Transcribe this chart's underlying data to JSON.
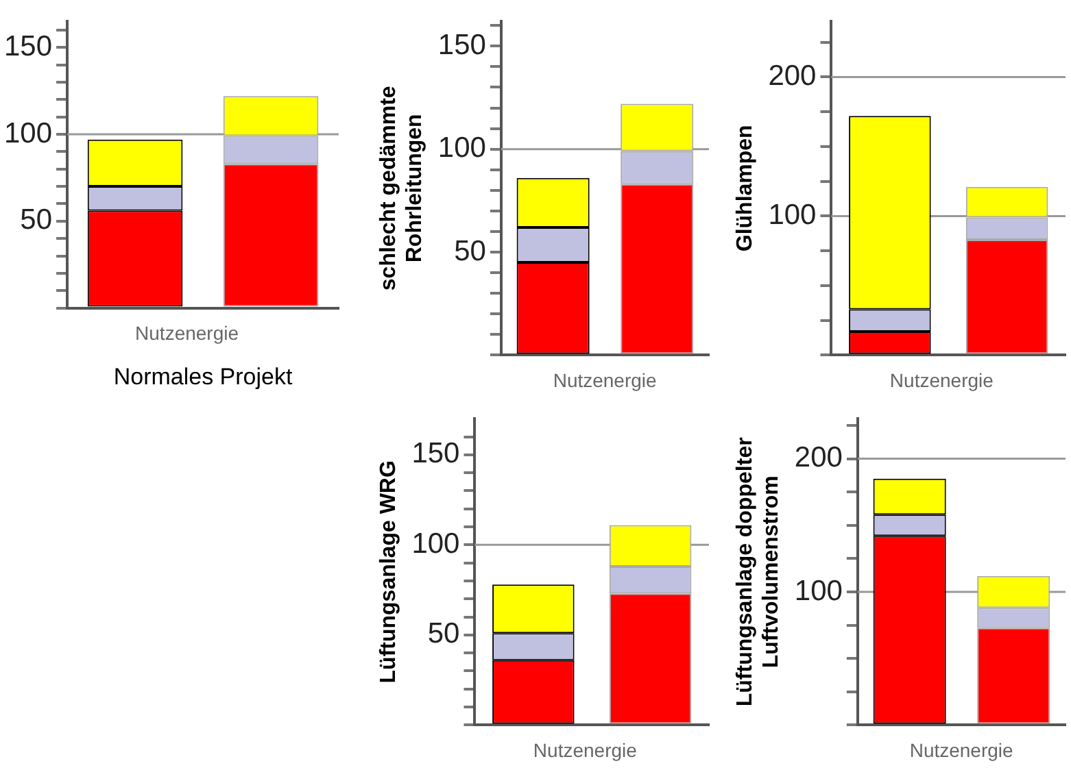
{
  "chart_data": [
    {
      "type": "bar",
      "stacked": true,
      "xlabel": "Normales Projekt",
      "categories": [
        "Nutzenergie",
        null
      ],
      "series": [
        {
          "color": "#ff0000",
          "values": [
            56,
            83
          ]
        },
        {
          "color": "#c0c0e0",
          "values": [
            14,
            16
          ]
        },
        {
          "color": "#ffff00",
          "values": [
            27,
            23
          ]
        }
      ],
      "ylim": [
        0,
        165
      ],
      "yticks": [
        {
          "value": 0,
          "label": null
        },
        {
          "value": 10,
          "label": null
        },
        {
          "value": 20,
          "label": null
        },
        {
          "value": 30,
          "label": null
        },
        {
          "value": 40,
          "label": null
        },
        50,
        {
          "value": 60,
          "label": null
        },
        {
          "value": 70,
          "label": null
        },
        {
          "value": 80,
          "label": null
        },
        {
          "value": 90,
          "label": null
        },
        100,
        {
          "value": 110,
          "label": null
        },
        {
          "value": 120,
          "label": null
        },
        {
          "value": 130,
          "label": null
        },
        {
          "value": 140,
          "label": null
        },
        150,
        {
          "value": 160,
          "label": null
        }
      ],
      "ref_lines": [
        {
          "axis": "y",
          "value": 100,
          "color": "#999999"
        }
      ]
    },
    {
      "type": "bar",
      "stacked": true,
      "ylabel": "schlecht gedämmte\nRohrleitungen",
      "categories": [
        "Nutzenergie",
        null
      ],
      "series": [
        {
          "color": "#ff0000",
          "values": [
            45,
            83
          ]
        },
        {
          "color": "#c0c0e0",
          "values": [
            17,
            16
          ]
        },
        {
          "color": "#ffff00",
          "values": [
            24,
            23
          ]
        }
      ],
      "ylim": [
        0,
        162
      ],
      "yticks": [
        {
          "value": 0,
          "label": null
        },
        {
          "value": 10,
          "label": null
        },
        {
          "value": 20,
          "label": null
        },
        {
          "value": 30,
          "label": null
        },
        {
          "value": 40,
          "label": null
        },
        50,
        {
          "value": 60,
          "label": null
        },
        {
          "value": 70,
          "label": null
        },
        {
          "value": 80,
          "label": null
        },
        {
          "value": 90,
          "label": null
        },
        100,
        {
          "value": 110,
          "label": null
        },
        {
          "value": 120,
          "label": null
        },
        {
          "value": 130,
          "label": null
        },
        {
          "value": 140,
          "label": null
        },
        150,
        {
          "value": 160,
          "label": null
        }
      ],
      "ref_lines": [
        {
          "axis": "y",
          "value": 100,
          "color": "#999999"
        }
      ]
    },
    {
      "type": "bar",
      "stacked": true,
      "ylabel": "Glühlampen",
      "categories": [
        "Nutzenergie",
        null
      ],
      "series": [
        {
          "color": "#ff0000",
          "values": [
            17,
            83
          ]
        },
        {
          "color": "#c0c0e0",
          "values": [
            16,
            16
          ]
        },
        {
          "color": "#ffff00",
          "values": [
            139,
            22
          ]
        }
      ],
      "ylim": [
        0,
        240
      ],
      "yticks": [
        {
          "value": 0,
          "label": null
        },
        {
          "value": 25,
          "label": null
        },
        {
          "value": 50,
          "label": null
        },
        {
          "value": 75,
          "label": null
        },
        100,
        {
          "value": 125,
          "label": null
        },
        {
          "value": 150,
          "label": null
        },
        {
          "value": 175,
          "label": null
        },
        200,
        {
          "value": 225,
          "label": null
        }
      ],
      "ref_lines": [
        {
          "axis": "y",
          "value": 100,
          "color": "#999999"
        },
        {
          "axis": "y",
          "value": 200,
          "color": "#999999"
        }
      ]
    },
    {
      "type": "bar",
      "stacked": true,
      "ylabel": "Lüftungsanlage WRG",
      "categories": [
        "Nutzenergie",
        null
      ],
      "series": [
        {
          "color": "#ff0000",
          "values": [
            36,
            73
          ]
        },
        {
          "color": "#c0c0e0",
          "values": [
            15,
            15
          ]
        },
        {
          "color": "#ffff00",
          "values": [
            27,
            23
          ]
        }
      ],
      "ylim": [
        0,
        170
      ],
      "yticks": [
        {
          "value": 0,
          "label": null
        },
        {
          "value": 10,
          "label": null
        },
        {
          "value": 20,
          "label": null
        },
        {
          "value": 30,
          "label": null
        },
        {
          "value": 40,
          "label": null
        },
        50,
        {
          "value": 60,
          "label": null
        },
        {
          "value": 70,
          "label": null
        },
        {
          "value": 80,
          "label": null
        },
        {
          "value": 90,
          "label": null
        },
        100,
        {
          "value": 110,
          "label": null
        },
        {
          "value": 120,
          "label": null
        },
        {
          "value": 130,
          "label": null
        },
        {
          "value": 140,
          "label": null
        },
        150,
        {
          "value": 160,
          "label": null
        }
      ],
      "ref_lines": [
        {
          "axis": "y",
          "value": 100,
          "color": "#999999"
        }
      ]
    },
    {
      "type": "bar",
      "stacked": true,
      "ylabel": "Lüftungsanlage doppelter\nLuftvolumenstrom",
      "categories": [
        "Nutzenergie",
        null
      ],
      "series": [
        {
          "color": "#ff0000",
          "values": [
            142,
            73
          ]
        },
        {
          "color": "#c0c0e0",
          "values": [
            16,
            15
          ]
        },
        {
          "color": "#ffff00",
          "values": [
            27,
            24
          ]
        }
      ],
      "ylim": [
        0,
        230
      ],
      "yticks": [
        {
          "value": 0,
          "label": null
        },
        {
          "value": 25,
          "label": null
        },
        {
          "value": 50,
          "label": null
        },
        {
          "value": 75,
          "label": null
        },
        100,
        {
          "value": 125,
          "label": null
        },
        {
          "value": 150,
          "label": null
        },
        {
          "value": 175,
          "label": null
        },
        200,
        {
          "value": 225,
          "label": null
        }
      ],
      "ref_lines": [
        {
          "axis": "y",
          "value": 100,
          "color": "#999999"
        },
        {
          "axis": "y",
          "value": 200,
          "color": "#999999"
        }
      ]
    }
  ]
}
